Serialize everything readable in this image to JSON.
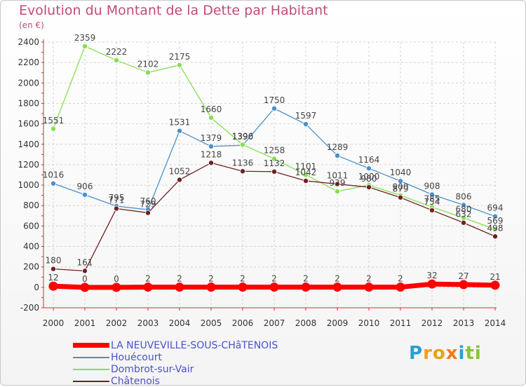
{
  "title": "Evolution du Montant de la Dette par Habitant",
  "unit": "(en €)",
  "brand": "Proxiti",
  "chart_data": {
    "type": "line",
    "title": "Evolution du Montant de la Dette par Habitant",
    "ylabel": "(en €)",
    "x": [
      2000,
      2001,
      2002,
      2003,
      2004,
      2005,
      2006,
      2007,
      2008,
      2009,
      2010,
      2011,
      2012,
      2013,
      2014
    ],
    "ylim": [
      -200,
      2400
    ],
    "yticks": [
      -200,
      0,
      200,
      400,
      600,
      800,
      1000,
      1200,
      1400,
      1600,
      1800,
      2000,
      2200,
      2400
    ],
    "grid": true,
    "legend_position": "bottom",
    "series": [
      {
        "name": "LA NEUVEVILLE-SOUS-CHâTENOIS",
        "color": "#ff0000",
        "values": [
          12,
          0,
          0,
          2,
          2,
          2,
          2,
          2,
          2,
          2,
          2,
          2,
          32,
          27,
          21
        ]
      },
      {
        "name": "Houécourt",
        "color": "#4a90c8",
        "values": [
          1016,
          906,
          795,
          760,
          1531,
          1379,
          1390,
          1750,
          1597,
          1289,
          1164,
          1040,
          908,
          806,
          694
        ]
      },
      {
        "name": "Dombrot-sur-Vair",
        "color": "#88dd55",
        "values": [
          1551,
          2359,
          2222,
          2102,
          2175,
          1660,
          1396,
          1258,
          1101,
          939,
          1000,
          900,
          785,
          680,
          569
        ]
      },
      {
        "name": "Châtenois",
        "color": "#6e2222",
        "values": [
          180,
          161,
          771,
          729,
          1052,
          1218,
          1136,
          1132,
          1042,
          1011,
          980,
          879,
          754,
          632,
          498
        ]
      }
    ]
  }
}
